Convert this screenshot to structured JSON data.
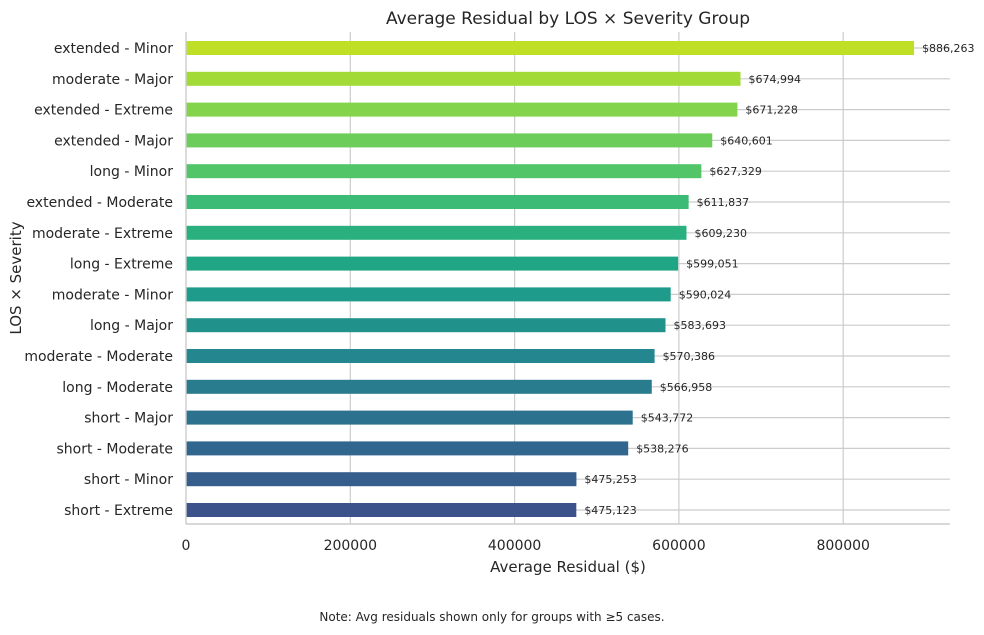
{
  "chart_data": {
    "type": "bar",
    "orientation": "horizontal",
    "title": "Average Residual by LOS × Severity Group",
    "xlabel": "Average Residual ($)",
    "ylabel": "LOS × Severity",
    "xlim": [
      0,
      930000
    ],
    "xticks": [
      0,
      200000,
      400000,
      600000,
      800000
    ],
    "xtick_labels": [
      "0",
      "200000",
      "400000",
      "600000",
      "800000"
    ],
    "grid": true,
    "categories": [
      "extended - Minor",
      "moderate - Major",
      "extended - Extreme",
      "extended - Major",
      "long - Minor",
      "extended - Moderate",
      "moderate - Extreme",
      "long - Extreme",
      "moderate - Minor",
      "long - Major",
      "moderate - Moderate",
      "long - Moderate",
      "short - Major",
      "short - Moderate",
      "short - Minor",
      "short - Extreme"
    ],
    "values": [
      886263,
      674994,
      671228,
      640601,
      627329,
      611837,
      609230,
      599051,
      590024,
      583693,
      570386,
      566958,
      543772,
      538276,
      475253,
      475123
    ],
    "value_labels": [
      "$886,263",
      "$674,994",
      "$671,228",
      "$640,601",
      "$627,329",
      "$611,837",
      "$609,230",
      "$599,051",
      "$590,024",
      "$583,693",
      "$570,386",
      "$566,958",
      "$543,772",
      "$538,276",
      "$475,253",
      "$475,123"
    ],
    "colors": [
      "#bddf26",
      "#a2da37",
      "#84d44b",
      "#6ccd5a",
      "#52c569",
      "#3bbb75",
      "#2ab07f",
      "#21a685",
      "#1e9b8a",
      "#21918c",
      "#24868e",
      "#287c8e",
      "#2c718e",
      "#31668e",
      "#355e8d",
      "#3b528b"
    ]
  },
  "footer": {
    "note": "Note: Avg residuals shown only for groups with ≥5 cases."
  }
}
